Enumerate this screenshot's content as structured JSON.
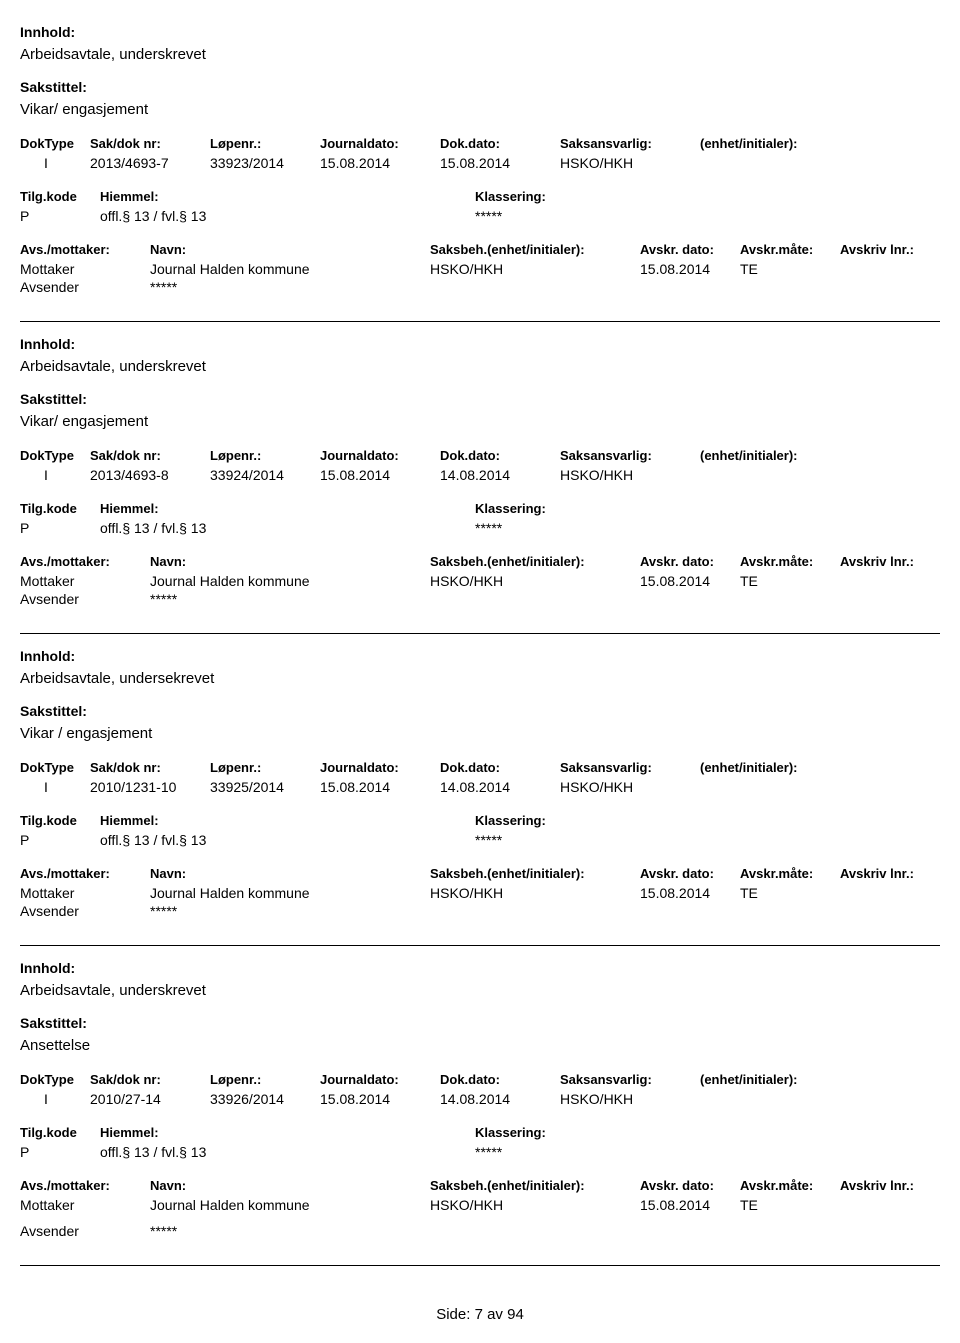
{
  "labels": {
    "innhold": "Innhold:",
    "sakstittel": "Sakstittel:",
    "doktype": "DokType",
    "sakdok": "Sak/dok nr:",
    "lopenr": "Løpenr.:",
    "journaldato": "Journaldato:",
    "dokdato": "Dok.dato:",
    "saksansvarlig": "Saksansvarlig:",
    "enhet": "(enhet/initialer):",
    "tilgkode": "Tilg.kode",
    "hjemmel": "Hiemmel:",
    "klassering": "Klassering:",
    "avs_mottaker": "Avs./mottaker:",
    "navn": "Navn:",
    "saksbeh": "Saksbeh.(enhet/initialer):",
    "avskr_dato": "Avskr. dato:",
    "avskr_mate": "Avskr.måte:",
    "avskriv_lnr": "Avskriv lnr.:",
    "mottaker": "Mottaker",
    "avsender": "Avsender"
  },
  "records": [
    {
      "innhold": "Arbeidsavtale, underskrevet",
      "sakstittel": "Vikar/ engasjement",
      "doktype": "I",
      "sakdok": "2013/4693-7",
      "lopenr": "33923/2014",
      "journaldato": "15.08.2014",
      "dokdato": "15.08.2014",
      "saksansvarlig": "HSKO/HKH",
      "tilg": "P",
      "hjemmel": "offl.§ 13 / fvl.§ 13",
      "klassering": "*****",
      "mottaker_navn": "Journal Halden kommune",
      "saksbeh": "HSKO/HKH",
      "avskr_dato": "15.08.2014",
      "avskr_mate": "TE",
      "avsender_navn": "*****",
      "extra_margin": false
    },
    {
      "innhold": "Arbeidsavtale, underskrevet",
      "sakstittel": "Vikar/ engasjement",
      "doktype": "I",
      "sakdok": "2013/4693-8",
      "lopenr": "33924/2014",
      "journaldato": "15.08.2014",
      "dokdato": "14.08.2014",
      "saksansvarlig": "HSKO/HKH",
      "tilg": "P",
      "hjemmel": "offl.§ 13 / fvl.§ 13",
      "klassering": "*****",
      "mottaker_navn": "Journal Halden kommune",
      "saksbeh": "HSKO/HKH",
      "avskr_dato": "15.08.2014",
      "avskr_mate": "TE",
      "avsender_navn": "*****",
      "extra_margin": false
    },
    {
      "innhold": "Arbeidsavtale, undersekrevet",
      "sakstittel": "Vikar / engasjement",
      "doktype": "I",
      "sakdok": "2010/1231-10",
      "lopenr": "33925/2014",
      "journaldato": "15.08.2014",
      "dokdato": "14.08.2014",
      "saksansvarlig": "HSKO/HKH",
      "tilg": "P",
      "hjemmel": "offl.§ 13 / fvl.§ 13",
      "klassering": "*****",
      "mottaker_navn": "Journal Halden kommune",
      "saksbeh": "HSKO/HKH",
      "avskr_dato": "15.08.2014",
      "avskr_mate": "TE",
      "avsender_navn": "*****",
      "extra_margin": false
    },
    {
      "innhold": "Arbeidsavtale, underskrevet",
      "sakstittel": "Ansettelse",
      "doktype": "I",
      "sakdok": "2010/27-14",
      "lopenr": "33926/2014",
      "journaldato": "15.08.2014",
      "dokdato": "14.08.2014",
      "saksansvarlig": "HSKO/HKH",
      "tilg": "P",
      "hjemmel": "offl.§ 13 / fvl.§ 13",
      "klassering": "*****",
      "mottaker_navn": "Journal Halden kommune",
      "saksbeh": "HSKO/HKH",
      "avskr_dato": "15.08.2014",
      "avskr_mate": "TE",
      "avsender_navn": "*****",
      "extra_margin": true
    }
  ],
  "footer": "Side: 7 av 94"
}
